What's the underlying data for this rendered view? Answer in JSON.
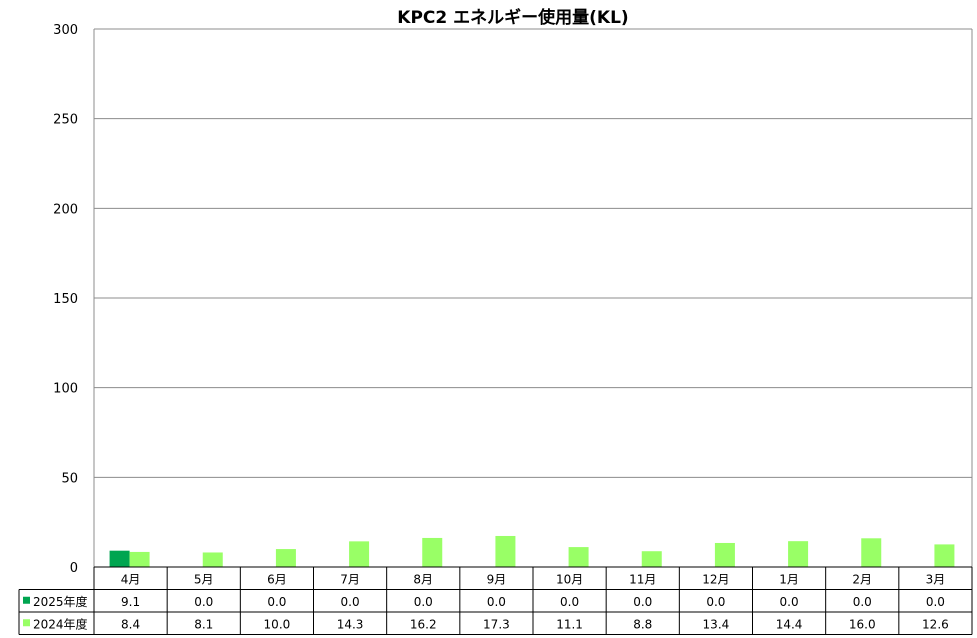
{
  "chart_data": {
    "type": "bar",
    "title": "KPC2 エネルギー使用量(KL)",
    "categories": [
      "4月",
      "5月",
      "6月",
      "7月",
      "8月",
      "9月",
      "10月",
      "11月",
      "12月",
      "1月",
      "2月",
      "3月"
    ],
    "series": [
      {
        "name": "2025年度",
        "color": "#00a550",
        "values": [
          9.1,
          0.0,
          0.0,
          0.0,
          0.0,
          0.0,
          0.0,
          0.0,
          0.0,
          0.0,
          0.0,
          0.0
        ],
        "labels": [
          "9.1",
          "0.0",
          "0.0",
          "0.0",
          "0.0",
          "0.0",
          "0.0",
          "0.0",
          "0.0",
          "0.0",
          "0.0",
          "0.0"
        ]
      },
      {
        "name": "2024年度",
        "color": "#99ff66",
        "values": [
          8.4,
          8.1,
          10.0,
          14.3,
          16.2,
          17.3,
          11.1,
          8.8,
          13.4,
          14.4,
          16.0,
          12.6
        ],
        "labels": [
          "8.4",
          "8.1",
          "10.0",
          "14.3",
          "16.2",
          "17.3",
          "11.1",
          "8.8",
          "13.4",
          "14.4",
          "16.0",
          "12.6"
        ]
      }
    ],
    "ylim": [
      0,
      300
    ],
    "yticks": [
      "0",
      "50",
      "100",
      "150",
      "200",
      "250",
      "300"
    ],
    "grid": true,
    "legend": "data-table-left"
  }
}
